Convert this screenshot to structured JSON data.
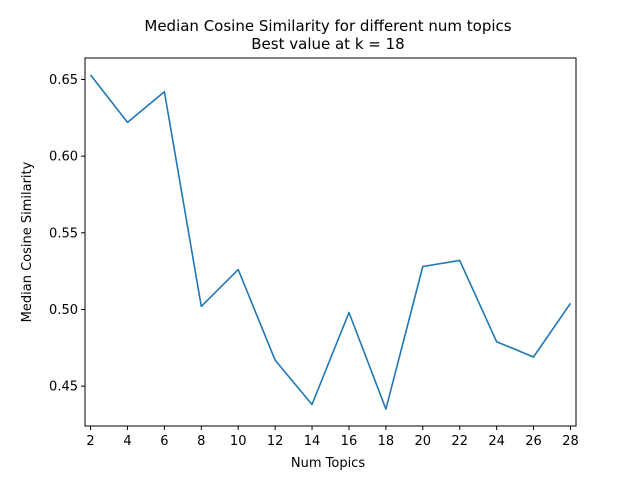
{
  "chart_data": {
    "type": "line",
    "title": "Median Cosine Similarity for different num topics",
    "subtitle": "Best value at k = 18",
    "xlabel": "Num Topics",
    "ylabel": "Median Cosine Similarity",
    "xlim": [
      1.7,
      28.3
    ],
    "ylim": [
      0.424,
      0.664
    ],
    "xticks": [
      2,
      4,
      6,
      8,
      10,
      12,
      14,
      16,
      18,
      20,
      22,
      24,
      26,
      28
    ],
    "xtick_labels": [
      "2",
      "4",
      "6",
      "8",
      "10",
      "12",
      "14",
      "16",
      "18",
      "20",
      "22",
      "24",
      "26",
      "28"
    ],
    "yticks": [
      0.45,
      0.5,
      0.55,
      0.6,
      0.65
    ],
    "ytick_labels": [
      "0.45",
      "0.50",
      "0.55",
      "0.60",
      "0.65"
    ],
    "grid": false,
    "series": [
      {
        "color": "#1f77b4",
        "x": [
          2,
          4,
          6,
          8,
          10,
          12,
          14,
          16,
          18,
          20,
          22,
          24,
          26,
          28
        ],
        "y": [
          0.653,
          0.622,
          0.642,
          0.502,
          0.526,
          0.467,
          0.438,
          0.498,
          0.435,
          0.528,
          0.532,
          0.479,
          0.469,
          0.504
        ]
      }
    ]
  }
}
